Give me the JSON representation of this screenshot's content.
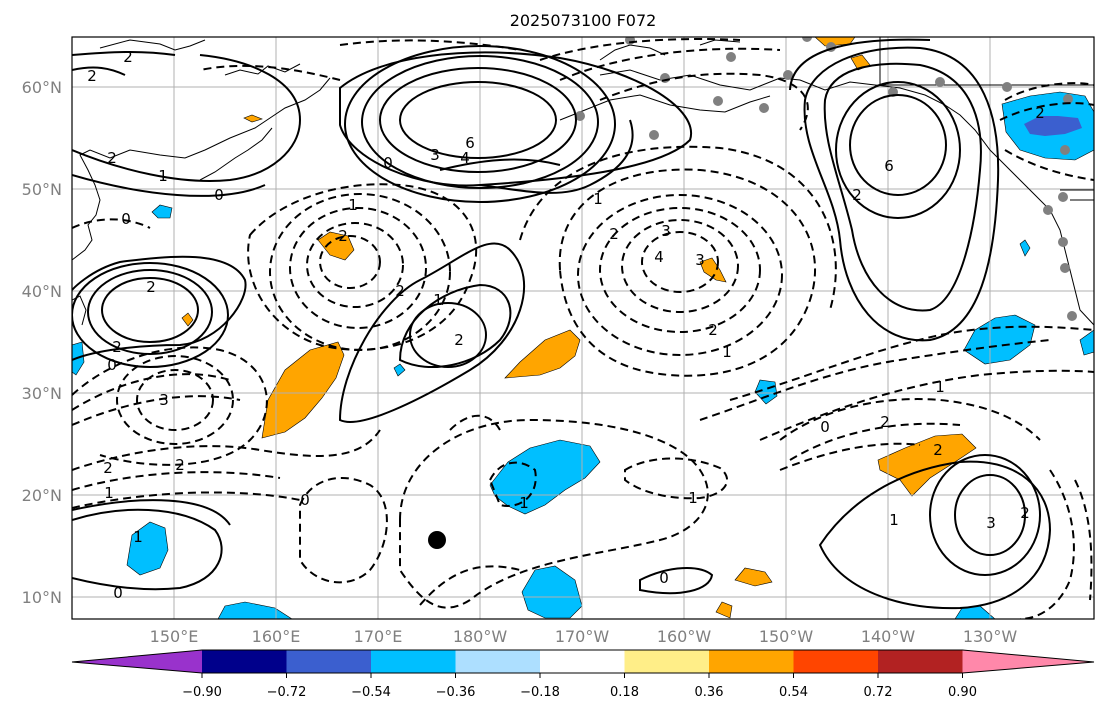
{
  "map": {
    "title": "2025073100 F072",
    "lat_labels": [
      "60°N",
      "50°N",
      "40°N",
      "30°N",
      "20°N",
      "10°N"
    ],
    "lon_labels": [
      "150°E",
      "160°E",
      "170°E",
      "180°W",
      "170°W",
      "160°W",
      "150°W",
      "140°W",
      "130°W"
    ],
    "contour_labels": [
      "2",
      "2",
      "2",
      "1",
      "0",
      "0",
      "6",
      "0",
      "3",
      "4",
      "1",
      "6",
      "2",
      "1",
      "2",
      "3",
      "2",
      "4",
      "3",
      "2",
      "2",
      "1",
      "2",
      "0",
      "2",
      "3",
      "2",
      "1",
      "2",
      "1",
      "1",
      "1",
      "0",
      "0",
      "0",
      "2",
      "2",
      "1",
      "1",
      "3",
      "2",
      "2",
      "0",
      "2",
      "1"
    ],
    "marker": "storm-center-dot",
    "colors": {
      "positive_fill": "#FFA500",
      "negative_fill": "#00BFFF",
      "strong_negative_fill": "#3B5FCF",
      "grid": "#b0b0b0",
      "coast": "#000000",
      "station_marker": "#808080"
    }
  },
  "colorbar": {
    "tick_labels": [
      "−0.90",
      "−0.72",
      "−0.54",
      "−0.36",
      "−0.18",
      "0.18",
      "0.36",
      "0.54",
      "0.72",
      "0.90"
    ],
    "colors": [
      "#9932CC",
      "#00008B",
      "#3B5FCF",
      "#00BFFF",
      "#ADDFFF",
      "#FFFFFF",
      "#FFEE88",
      "#FFA500",
      "#FF4500",
      "#B22222",
      "#FF88AA"
    ]
  }
}
